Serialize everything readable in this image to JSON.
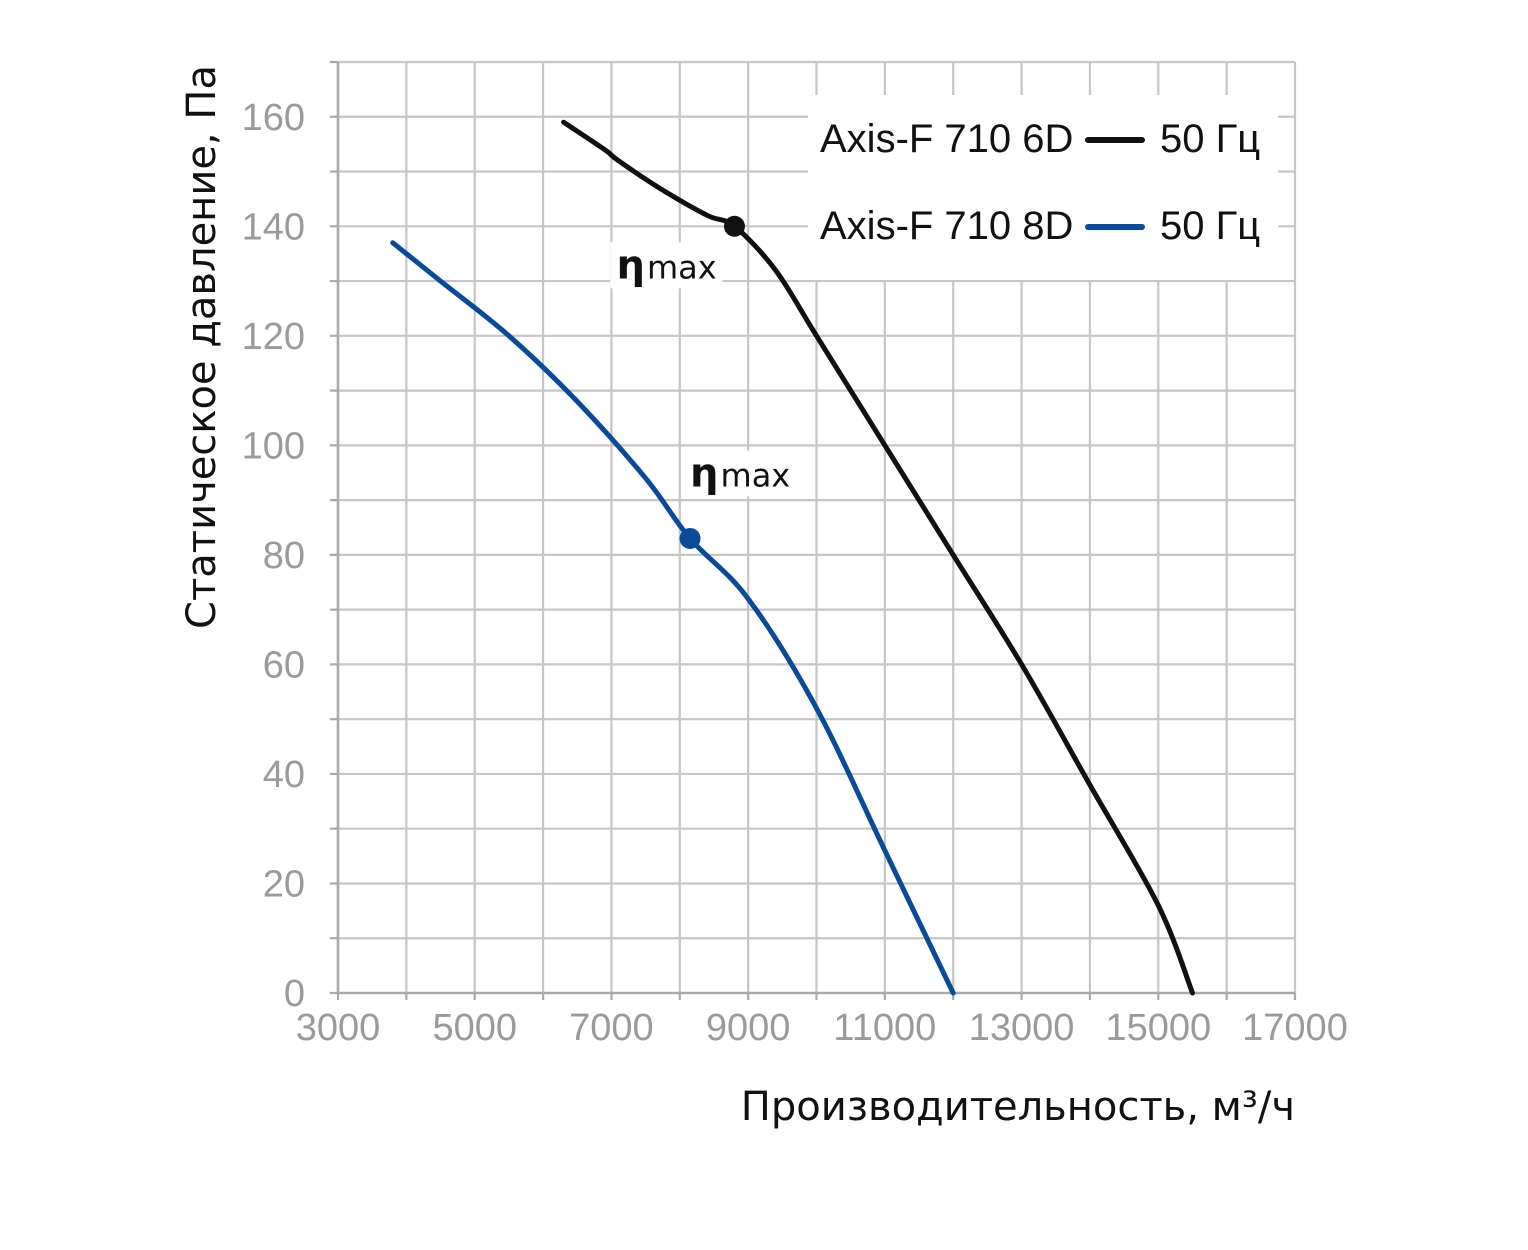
{
  "chart_data": {
    "type": "line",
    "xlabel": "Производительность, м³/ч",
    "ylabel": "Статическое давление, Па",
    "xlim": [
      3000,
      17000
    ],
    "ylim": [
      0,
      170
    ],
    "x_ticks": [
      3000,
      5000,
      7000,
      9000,
      11000,
      13000,
      15000,
      17000
    ],
    "y_ticks": [
      0,
      20,
      40,
      60,
      80,
      100,
      120,
      140,
      160
    ],
    "grid": true,
    "legend_placement": "top-right",
    "series": [
      {
        "name": "Axis-F 710 6D",
        "legend_suffix": "50 Гц",
        "color": "#111111",
        "points": [
          [
            6300,
            159
          ],
          [
            6900,
            154
          ],
          [
            7100,
            152
          ],
          [
            7700,
            147
          ],
          [
            8400,
            142
          ],
          [
            8800,
            140
          ],
          [
            9400,
            132
          ],
          [
            10000,
            120
          ],
          [
            11000,
            100
          ],
          [
            12000,
            80
          ],
          [
            13000,
            60
          ],
          [
            14000,
            38
          ],
          [
            15000,
            16
          ],
          [
            15500,
            0
          ]
        ],
        "marker": {
          "x": 8800,
          "y": 140,
          "label_symbol": "η",
          "label_sub": "max"
        }
      },
      {
        "name": "Axis-F 710 8D",
        "legend_suffix": "50 Гц",
        "color": "#0a4a96",
        "points": [
          [
            3800,
            137
          ],
          [
            4500,
            130
          ],
          [
            5500,
            120
          ],
          [
            6500,
            108
          ],
          [
            7500,
            94
          ],
          [
            8150,
            83
          ],
          [
            9000,
            72
          ],
          [
            10000,
            52
          ],
          [
            11000,
            26
          ],
          [
            12000,
            0
          ]
        ],
        "marker": {
          "x": 8150,
          "y": 83,
          "label_symbol": "η",
          "label_sub": "max"
        }
      }
    ]
  }
}
